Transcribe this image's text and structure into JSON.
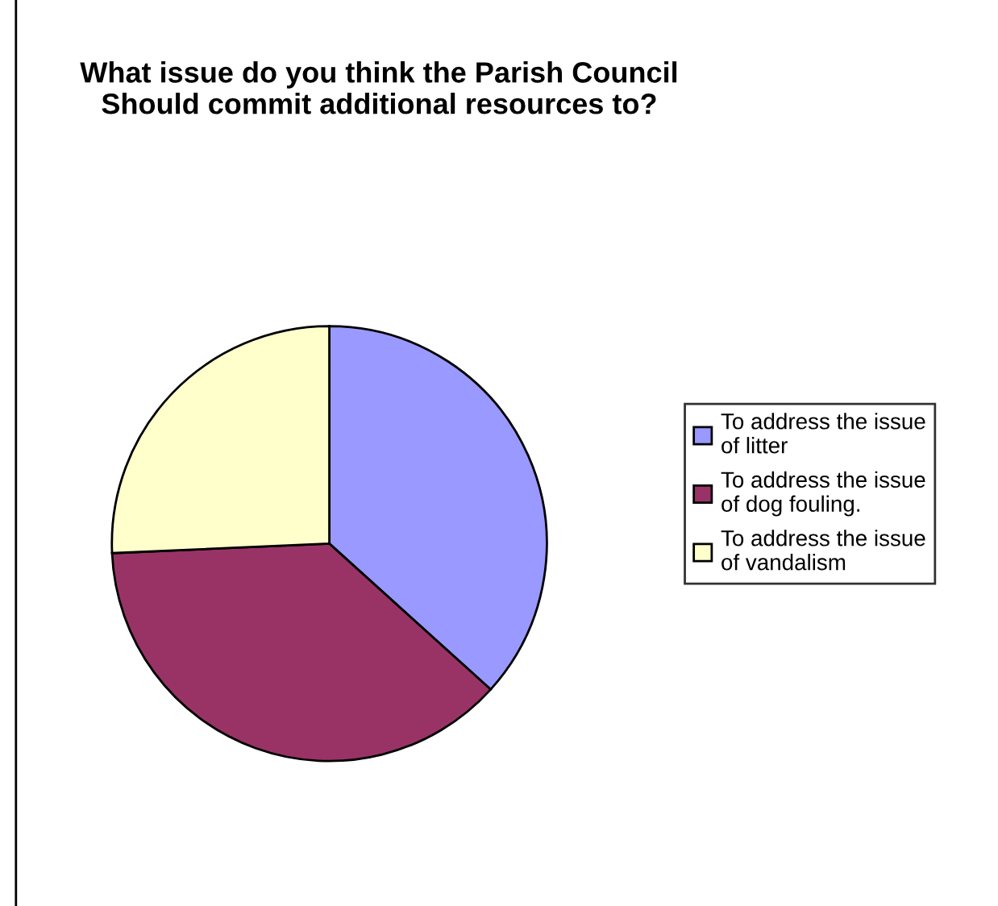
{
  "chart_data": {
    "type": "pie",
    "title": "What issue do you think the Parish Council\nShould commit additional resources to?",
    "categories": [
      "To address the issue\nof litter",
      "To address the issue\nof dog fouling.",
      "To address the issue\nof vandalism"
    ],
    "values": [
      36.7,
      37.6,
      25.7
    ],
    "colors": [
      "#9999ff",
      "#993366",
      "#ffffcc"
    ],
    "legend": "right"
  }
}
